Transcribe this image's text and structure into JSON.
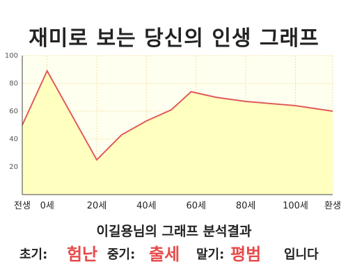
{
  "title": "재미로 보는 당신의 인생 그래프",
  "summary": "이길용님의 그래프 분석결과",
  "result": {
    "early_label": "초기:",
    "early_value": "험난",
    "mid_label": "중기:",
    "mid_value": "출세",
    "late_label": "말기:",
    "late_value": "평범",
    "ending": "입니다"
  },
  "colors": {
    "line": "#e05a5a",
    "fill": "#ffffc0",
    "plot_bg": "#fffff0",
    "grid": "#f0e0a0",
    "axis": "#444444",
    "highlight": "#e84a4a"
  },
  "chart_data": {
    "type": "area",
    "x_ticks": [
      {
        "x": -10,
        "label": "전생"
      },
      {
        "x": 0,
        "label": "0세"
      },
      {
        "x": 20,
        "label": "20세"
      },
      {
        "x": 40,
        "label": "40세"
      },
      {
        "x": 60,
        "label": "60세"
      },
      {
        "x": 80,
        "label": "80세"
      },
      {
        "x": 100,
        "label": "100세"
      },
      {
        "x": 115,
        "label": "환생"
      }
    ],
    "xlim": [
      -10,
      115
    ],
    "ylim": [
      0,
      100
    ],
    "y_ticks": [
      20,
      40,
      60,
      80,
      100
    ],
    "grid": true,
    "points": [
      {
        "x": -10,
        "y": 50
      },
      {
        "x": 0,
        "y": 89
      },
      {
        "x": 20,
        "y": 25
      },
      {
        "x": 30,
        "y": 43
      },
      {
        "x": 40,
        "y": 53
      },
      {
        "x": 50,
        "y": 61
      },
      {
        "x": 58,
        "y": 74
      },
      {
        "x": 68,
        "y": 70
      },
      {
        "x": 80,
        "y": 67
      },
      {
        "x": 100,
        "y": 64
      },
      {
        "x": 115,
        "y": 60
      }
    ]
  }
}
